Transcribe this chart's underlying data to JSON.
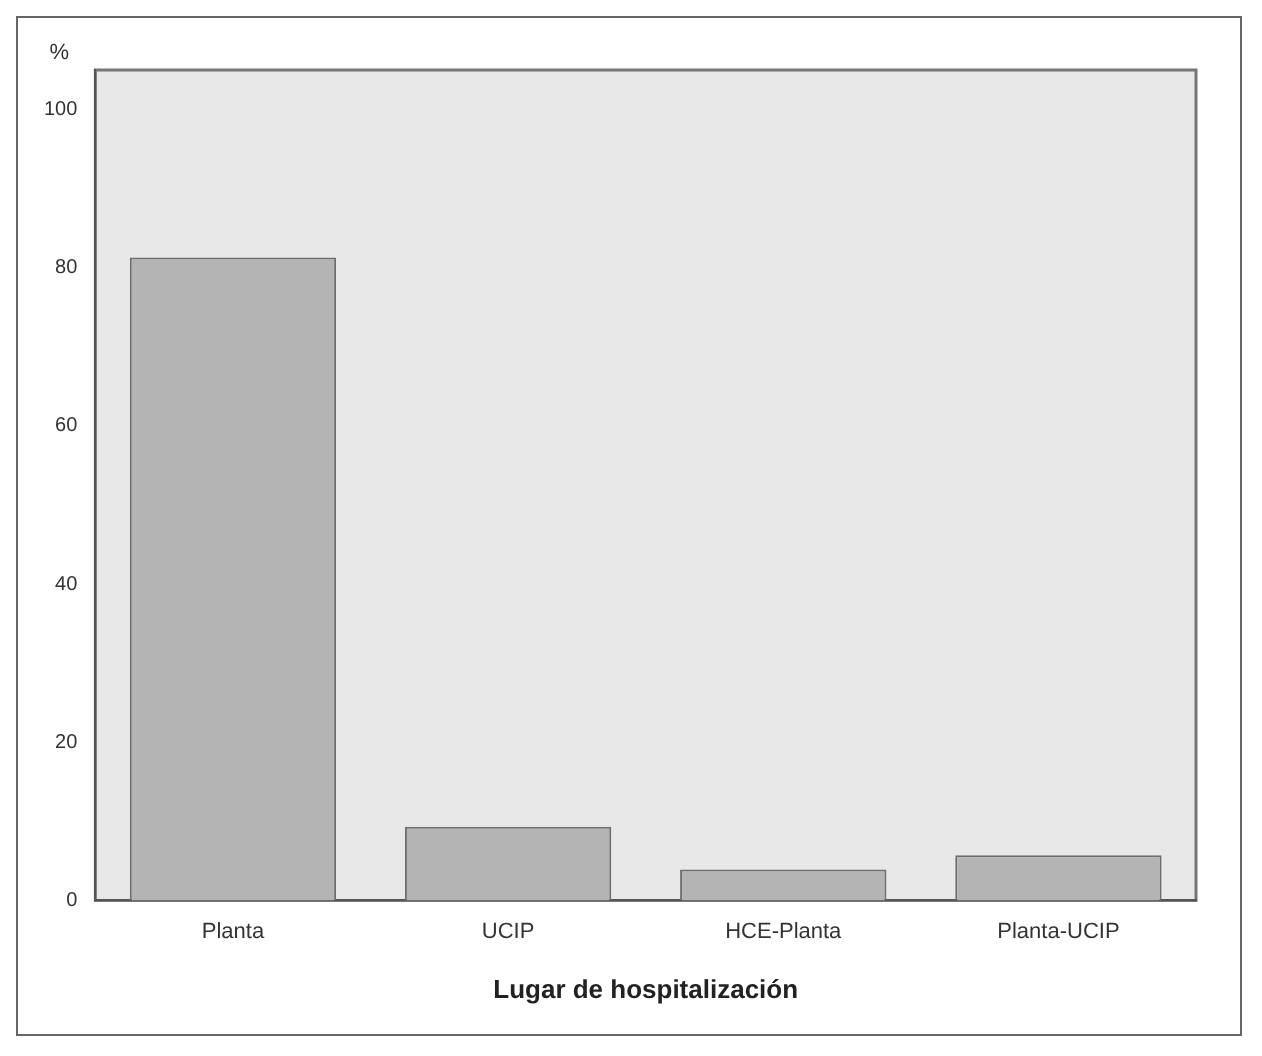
{
  "chart_data": {
    "type": "bar",
    "xlabel": "Lugar de hospitalización",
    "ylabel": "%",
    "categories": [
      "Planta",
      "UCIP",
      "HCE-Planta",
      "Planta-UCIP"
    ],
    "values": [
      81.3,
      9.3,
      3.9,
      5.7
    ],
    "color": "#b4b4b4",
    "ylim": [
      0,
      105
    ],
    "yticks": [
      0,
      20,
      40,
      60,
      80,
      100
    ],
    "grid": false,
    "legend": false
  }
}
